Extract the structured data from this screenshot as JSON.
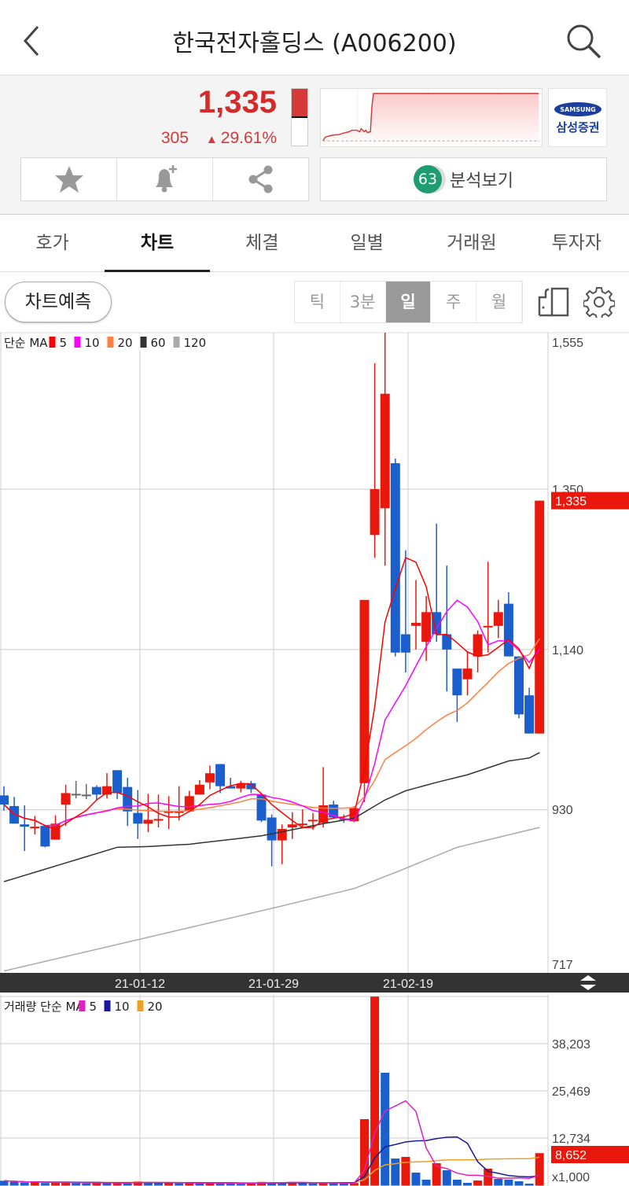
{
  "header": {
    "title": "한국전자홀딩스 (A006200)",
    "back_icon": "chevron-left-icon",
    "search_icon": "search-icon"
  },
  "quote": {
    "price": "1,335",
    "change": "305",
    "change_pct": "29.61%",
    "direction": "up",
    "up_color": "#d42a2a",
    "down_color": "#1a5fcc",
    "broker_logo": "SAMSUNG 삼성증권",
    "day_range_fill_pct": 52
  },
  "actions": {
    "favorite_icon": "star-icon",
    "alert_icon": "bell-plus-icon",
    "share_icon": "share-icon",
    "analysis_score": "63",
    "analysis_label": "분석보기"
  },
  "tabs": [
    {
      "label": "호가"
    },
    {
      "label": "차트",
      "active": true
    },
    {
      "label": "체결"
    },
    {
      "label": "일별"
    },
    {
      "label": "거래원"
    },
    {
      "label": "투자자"
    }
  ],
  "toolbar": {
    "predict_label": "차트예측",
    "periods": [
      {
        "label": "틱"
      },
      {
        "label": "3분"
      },
      {
        "label": "일",
        "active": true
      },
      {
        "label": "주"
      },
      {
        "label": "월"
      }
    ],
    "screen_icon": "screen-rotate-icon",
    "settings_icon": "gear-icon"
  },
  "chart_data": [
    {
      "type": "candlestick",
      "legend": {
        "prefix": "단순 MA",
        "items": [
          {
            "label": "5",
            "color": "#ff0000"
          },
          {
            "label": "10",
            "color": "#ff00ff"
          },
          {
            "label": "20",
            "color": "#ff8040"
          },
          {
            "label": "60",
            "color": "#333333"
          },
          {
            "label": "120",
            "color": "#aaaaaa"
          }
        ]
      },
      "y_ticks": [
        "1,555",
        "1,350",
        "1,140",
        "930",
        "717"
      ],
      "y_tick_values": [
        1555,
        1350,
        1140,
        930,
        717
      ],
      "ylim": [
        717,
        1555
      ],
      "x_ticks": [
        {
          "label": "21-01-12",
          "index": 13
        },
        {
          "label": "21-01-29",
          "index": 26
        },
        {
          "label": "21-02-19",
          "index": 39
        }
      ],
      "last_price_label": "1,335",
      "ohlc": [
        [
          949,
          961,
          929,
          937
        ],
        [
          935,
          947,
          912,
          912
        ],
        [
          911,
          936,
          876,
          908
        ],
        [
          908,
          922,
          898,
          908
        ],
        [
          909,
          910,
          881,
          882
        ],
        [
          891,
          923,
          891,
          912
        ],
        [
          937,
          963,
          909,
          952
        ],
        [
          951,
          968,
          945,
          951
        ],
        [
          950,
          964,
          944,
          950
        ],
        [
          960,
          962,
          943,
          950
        ],
        [
          950,
          978,
          945,
          961
        ],
        [
          982,
          982,
          944,
          952
        ],
        [
          960,
          972,
          909,
          928
        ],
        [
          926,
          956,
          892,
          912
        ],
        [
          912,
          951,
          901,
          917
        ],
        [
          918,
          950,
          907,
          918
        ],
        [
          928,
          948,
          905,
          928
        ],
        [
          928,
          961,
          916,
          928
        ],
        [
          928,
          955,
          928,
          948
        ],
        [
          950,
          969,
          950,
          963
        ],
        [
          966,
          988,
          957,
          978
        ],
        [
          990,
          990,
          952,
          961
        ],
        [
          961,
          972,
          958,
          958
        ],
        [
          958,
          968,
          953,
          964
        ],
        [
          965,
          968,
          952,
          957
        ],
        [
          950,
          950,
          914,
          916
        ],
        [
          920,
          924,
          856,
          890
        ],
        [
          890,
          911,
          859,
          905
        ],
        [
          907,
          927,
          892,
          911
        ],
        [
          912,
          931,
          906,
          912
        ],
        [
          917,
          926,
          904,
          917
        ],
        [
          913,
          986,
          907,
          936
        ],
        [
          937,
          942,
          919,
          920
        ],
        [
          919,
          924,
          913,
          919
        ],
        [
          915,
          935,
          914,
          932
        ],
        [
          965,
          1205,
          940,
          1205
        ],
        [
          1290,
          1515,
          1260,
          1350
        ],
        [
          1325,
          1555,
          1250,
          1475
        ],
        [
          1384,
          1390,
          1131,
          1136
        ],
        [
          1160,
          1270,
          1110,
          1136
        ],
        [
          1171,
          1231,
          1140,
          1175
        ],
        [
          1150,
          1210,
          1125,
          1189
        ],
        [
          1189,
          1305,
          1150,
          1160
        ],
        [
          1160,
          1250,
          1085,
          1140
        ],
        [
          1115,
          1115,
          1045,
          1080
        ],
        [
          1101,
          1138,
          1080,
          1115
        ],
        [
          1131,
          1165,
          1110,
          1160
        ],
        [
          1171,
          1255,
          1136,
          1171
        ],
        [
          1171,
          1205,
          1155,
          1189
        ],
        [
          1200,
          1215,
          1131,
          1131
        ],
        [
          1131,
          1131,
          1050,
          1055
        ],
        [
          1080,
          1090,
          1030,
          1030
        ],
        [
          1030,
          1335,
          1030,
          1335
        ]
      ],
      "ma60": [
        [
          0,
          836
        ],
        [
          11,
          881
        ],
        [
          14,
          882
        ],
        [
          18,
          885
        ],
        [
          25,
          896
        ],
        [
          31,
          912
        ],
        [
          34,
          919
        ],
        [
          37,
          943
        ],
        [
          39,
          955
        ],
        [
          42,
          966
        ],
        [
          45,
          976
        ],
        [
          49,
          994
        ],
        [
          51,
          998
        ],
        [
          52,
          1005
        ]
      ],
      "ma120": [
        [
          0,
          719
        ],
        [
          13,
          760
        ],
        [
          26,
          801
        ],
        [
          34,
          827
        ],
        [
          38,
          848
        ],
        [
          44,
          881
        ],
        [
          52,
          907
        ]
      ]
    },
    {
      "type": "bar",
      "legend": {
        "prefix": "거래량 단순 MA",
        "items": [
          {
            "label": "5",
            "color": "#e020c0"
          },
          {
            "label": "10",
            "color": "#1a1aa0"
          },
          {
            "label": "20",
            "color": "#f0a020"
          }
        ]
      },
      "y_ticks": [
        "38,203",
        "25,469",
        "12,734"
      ],
      "y_tick_values": [
        38203,
        25469,
        12734
      ],
      "unit_label": "x1,000",
      "last_volume_label": "8,652",
      "values": [
        1200,
        900,
        700,
        800,
        600,
        700,
        900,
        600,
        500,
        700,
        600,
        800,
        500,
        1000,
        800,
        600,
        700,
        500,
        600,
        500,
        700,
        600,
        500,
        400,
        600,
        900,
        800,
        700,
        900,
        600,
        500,
        700,
        600,
        500,
        600,
        17830,
        50900,
        30350,
        7200,
        7640,
        3400,
        1490,
        5940,
        4030,
        1490,
        640,
        1270,
        4460,
        1700,
        1500,
        1060,
        420,
        8652
      ]
    }
  ],
  "scale_toggle_icon": "expand-collapse-icon"
}
